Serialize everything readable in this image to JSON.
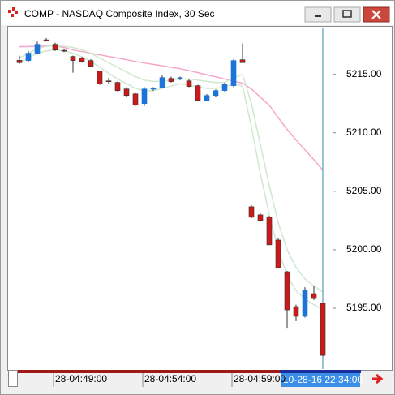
{
  "window": {
    "title": "COMP - NASDAQ Composite Index, 30 Sec"
  },
  "chart_data": {
    "type": "candlestick",
    "categories": [
      null,
      null,
      null,
      null,
      "28-04:49:00",
      null,
      null,
      null,
      null,
      null,
      null,
      null,
      null,
      null,
      "28-04:54:00",
      null,
      null,
      null,
      null,
      null,
      null,
      null,
      null,
      null,
      "28-04:59:00",
      null,
      null,
      null,
      null,
      null,
      null,
      null,
      null,
      null,
      null
    ],
    "open": [
      5216.2,
      5216.18,
      5216.81,
      5217.95,
      5217.57,
      5217.05,
      5216.53,
      5216.39,
      5216.18,
      5215.28,
      5214.44,
      5214.31,
      5213.75,
      5213.33,
      5212.5,
      5213.75,
      5213.89,
      5214.65,
      5214.58,
      5214.44,
      5214.03,
      5212.78,
      5213.19,
      5213.61,
      5214.03,
      5216.25,
      5203.68,
      5202.99,
      5202.78,
      5200.83,
      5198.12,
      5195.14,
      5194.31,
      5196.25,
      5195.42
    ],
    "high": [
      5216.6,
      5217.0,
      5217.8,
      5218.1,
      5217.7,
      5217.2,
      5216.6,
      5216.5,
      5216.3,
      5215.3,
      5214.7,
      5214.4,
      5213.9,
      5213.4,
      5213.9,
      5213.9,
      5214.9,
      5214.8,
      5214.8,
      5214.6,
      5214.1,
      5213.3,
      5213.7,
      5214.3,
      5216.3,
      5217.64,
      5203.8,
      5203.1,
      5202.9,
      5201.0,
      5198.2,
      5195.3,
      5196.8,
      5196.9,
      5195.5
    ],
    "low": [
      5215.9,
      5216.0,
      5216.7,
      5217.8,
      5217.0,
      5216.9,
      5215.14,
      5216.0,
      5215.6,
      5214.1,
      5214.2,
      5213.5,
      5213.1,
      5212.3,
      5212.3,
      5213.6,
      5213.8,
      5214.3,
      5214.5,
      5213.9,
      5212.7,
      5212.7,
      5213.1,
      5213.5,
      5213.9,
      5216.0,
      5202.7,
      5202.4,
      5200.4,
      5198.4,
      5193.26,
      5193.9,
      5194.2,
      5195.7,
      5190.9
    ],
    "close": [
      5216.0,
      5216.81,
      5217.57,
      5217.9,
      5217.08,
      5217.0,
      5216.18,
      5216.11,
      5215.69,
      5214.17,
      5214.42,
      5213.61,
      5213.19,
      5212.36,
      5213.75,
      5213.8,
      5214.72,
      5214.38,
      5214.72,
      5213.96,
      5212.78,
      5213.19,
      5213.61,
      5214.17,
      5216.18,
      5216.0,
      5202.78,
      5202.5,
      5200.42,
      5198.47,
      5194.86,
      5194.31,
      5196.53,
      5195.83,
      5190.97
    ],
    "up_color": "#1c74d8",
    "down_color": "#cc1a1a",
    "lines": [
      {
        "color": "#f4a6cb",
        "values": [
          5217.36,
          5217.38,
          5217.4,
          5217.42,
          5217.43,
          5217.3,
          5217.08,
          5216.95,
          5216.8,
          5216.67,
          5216.53,
          5216.4,
          5216.25,
          5216.1,
          5215.97,
          5215.85,
          5215.73,
          5215.61,
          5215.49,
          5215.32,
          5215.14,
          5214.96,
          5214.79,
          5214.6,
          5214.42,
          5214.24,
          5213.75,
          5213.05,
          5212.36,
          5211.3,
          5210.28,
          5209.4,
          5208.54,
          5207.7,
          5206.81
        ]
      },
      {
        "color": "#cfe8cf",
        "values": [
          5216.4,
          5216.8,
          5217.2,
          5217.4,
          5217.45,
          5217.4,
          5217.3,
          5217.1,
          5216.8,
          5216.4,
          5216.0,
          5215.6,
          5215.2,
          5214.8,
          5214.5,
          5214.4,
          5214.4,
          5214.5,
          5214.6,
          5214.6,
          5214.5,
          5214.4,
          5214.3,
          5214.3,
          5214.7,
          5215.0,
          5212.5,
          5209.0,
          5205.5,
          5202.3,
          5200.0,
          5198.5,
          5197.5,
          5196.9,
          5196.4
        ]
      },
      {
        "color": "#cfe8cf",
        "values": [
          5216.0,
          5216.4,
          5216.8,
          5217.0,
          5217.1,
          5217.0,
          5216.8,
          5216.5,
          5216.1,
          5215.6,
          5215.1,
          5214.6,
          5214.2,
          5213.8,
          5213.6,
          5213.6,
          5213.8,
          5214.0,
          5214.2,
          5214.1,
          5213.9,
          5213.8,
          5213.8,
          5213.9,
          5214.2,
          5214.0,
          5210.5,
          5206.5,
          5203.0,
          5200.0,
          5197.8,
          5196.5,
          5195.8,
          5195.3,
          5194.9
        ]
      }
    ],
    "ylim": [
      5189.8,
      5219.0
    ],
    "yticks": [
      {
        "value": 5195,
        "label": "5195.00"
      },
      {
        "value": 5200,
        "label": "5200.00"
      },
      {
        "value": 5205,
        "label": "5205.00"
      },
      {
        "value": 5210,
        "label": "5210.00"
      },
      {
        "value": 5215,
        "label": "5215.00"
      }
    ],
    "cursor_label": "10-28-16 22:34:00"
  }
}
